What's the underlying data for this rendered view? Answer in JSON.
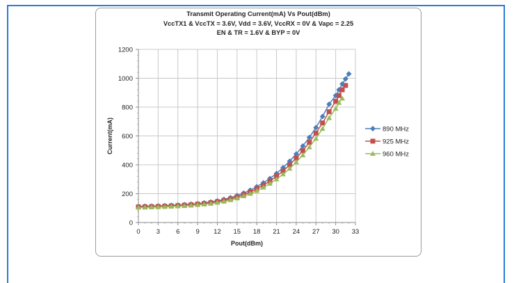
{
  "chart_data": {
    "type": "line",
    "title_lines": [
      "Transmit Operating Current(mA) Vs Pout(dBm)",
      "VccTX1 & VccTX = 3.6V, Vdd = 3.6V, VccRX  = 0V & Vapc = 2.25",
      "EN & TR = 1.6V & BYP = 0V"
    ],
    "xlabel": "Pout(dBm)",
    "ylabel": "Current(mA)",
    "xlim": [
      0,
      33
    ],
    "ylim": [
      0,
      1200
    ],
    "x_ticks": [
      "0",
      "3",
      "6",
      "9",
      "12",
      "15",
      "18",
      "21",
      "24",
      "27",
      "30",
      "33"
    ],
    "y_ticks": [
      "0",
      "200",
      "400",
      "600",
      "800",
      "1000",
      "1200"
    ],
    "grid": true,
    "legend_position": "right",
    "series": [
      {
        "name": "890 MHz",
        "color": "#4a7ebb",
        "marker": "diamond",
        "x": [
          0,
          1,
          2,
          3,
          4,
          5,
          6,
          7,
          8,
          9,
          10,
          11,
          12,
          13,
          14,
          15,
          16,
          17,
          18,
          19,
          20,
          21,
          22,
          23,
          24,
          25,
          26,
          27,
          28,
          29,
          30,
          30.5,
          31,
          31.5,
          32
        ],
        "y": [
          112,
          113,
          114,
          115,
          117,
          119,
          121,
          124,
          127,
          131,
          136,
          142,
          150,
          160,
          172,
          187,
          204,
          224,
          248,
          275,
          305,
          340,
          380,
          425,
          475,
          530,
          590,
          658,
          735,
          820,
          880,
          920,
          960,
          995,
          1030
        ]
      },
      {
        "name": "925 MHz",
        "color": "#c0504d",
        "marker": "square",
        "x": [
          0,
          1,
          2,
          3,
          4,
          5,
          6,
          7,
          8,
          9,
          10,
          11,
          12,
          13,
          14,
          15,
          16,
          17,
          18,
          19,
          20,
          21,
          22,
          23,
          24,
          25,
          26,
          27,
          28,
          29,
          30,
          30.5,
          31,
          31.5
        ],
        "y": [
          108,
          109,
          110,
          111,
          113,
          115,
          117,
          120,
          123,
          127,
          131,
          137,
          144,
          153,
          164,
          177,
          193,
          212,
          234,
          259,
          287,
          320,
          357,
          399,
          446,
          498,
          556,
          620,
          690,
          768,
          840,
          880,
          920,
          950
        ]
      },
      {
        "name": "960 MHz",
        "color": "#9bbb59",
        "marker": "triangle",
        "x": [
          0,
          1,
          2,
          3,
          4,
          5,
          6,
          7,
          8,
          9,
          10,
          11,
          12,
          13,
          14,
          15,
          16,
          17,
          18,
          19,
          20,
          21,
          22,
          23,
          24,
          25,
          26,
          27,
          28,
          29,
          30,
          30.5,
          31
        ],
        "y": [
          104,
          105,
          106,
          107,
          109,
          111,
          113,
          115,
          118,
          122,
          126,
          131,
          138,
          146,
          156,
          168,
          183,
          200,
          220,
          243,
          270,
          300,
          335,
          374,
          418,
          467,
          522,
          582,
          650,
          725,
          790,
          830,
          860
        ]
      }
    ]
  }
}
